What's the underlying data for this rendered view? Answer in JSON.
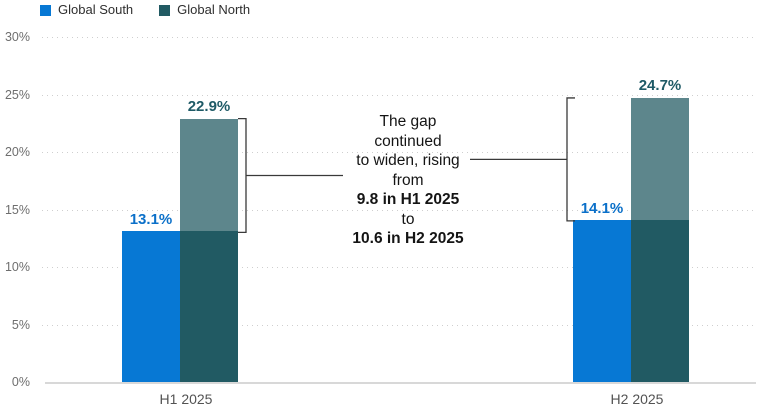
{
  "legend": {
    "items": [
      {
        "label": "Global South",
        "color": "#0778d4"
      },
      {
        "label": "Global North",
        "color": "#215a63"
      }
    ]
  },
  "chart_data": {
    "type": "bar",
    "title": "",
    "categories": [
      "H1 2025",
      "H2 2025"
    ],
    "series": [
      {
        "name": "Global South",
        "values": [
          13.1,
          14.1
        ],
        "data_labels": [
          "13.1%",
          "14.1%"
        ],
        "color": "#0778d4",
        "label_color": "#0b70c9"
      },
      {
        "name": "Global North",
        "values": [
          22.9,
          24.7
        ],
        "data_labels": [
          "22.9%",
          "24.7%"
        ],
        "color": "#215a63",
        "gap_fade_color": "#5d868c",
        "label_color": "#1e5a66"
      }
    ],
    "ylim": [
      0,
      30
    ],
    "ytick_step": 5,
    "ytick_labels": [
      "0%",
      "5%",
      "10%",
      "15%",
      "20%",
      "25%",
      "30%"
    ],
    "grid": "horizontal-dotted",
    "legend_position": "top-left",
    "annotation": {
      "lines": [
        {
          "text": "The gap",
          "bold": false
        },
        {
          "text": "continued",
          "bold": false
        },
        {
          "text": "to widen, rising",
          "bold": false
        },
        {
          "text": "from",
          "bold": false
        },
        {
          "text": "9.8 in H1 2025",
          "bold": true
        },
        {
          "text": "to",
          "bold": false
        },
        {
          "text": "10.6 in H2 2025",
          "bold": true
        }
      ],
      "gap_values": [
        9.8,
        10.6
      ],
      "bracket_color": "#3a3a3a"
    }
  }
}
